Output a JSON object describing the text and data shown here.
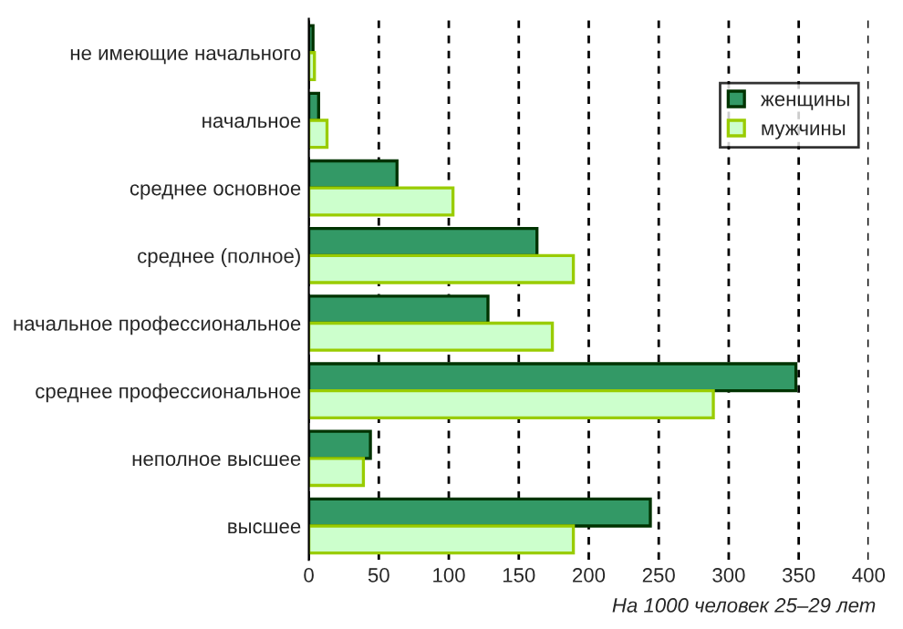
{
  "chart_data": {
    "type": "bar",
    "orientation": "horizontal",
    "categories": [
      "не имеющие начального",
      "начальное",
      "среднее основное",
      "среднее (полное)",
      "начальное профессиональное",
      "среднее профессиональное",
      "неполное высшее",
      "высшее"
    ],
    "series": [
      {
        "name": "женщины",
        "color": "#339966",
        "values": [
          3,
          7,
          63,
          163,
          128,
          348,
          44,
          244
        ]
      },
      {
        "name": "мужчины",
        "color": "#ccffcc",
        "values": [
          4,
          13,
          103,
          189,
          174,
          289,
          39,
          189
        ]
      }
    ],
    "xlim": [
      0,
      400
    ],
    "xticks": [
      0,
      50,
      100,
      150,
      200,
      250,
      300,
      350,
      400
    ],
    "grid": "x",
    "legend": "top right",
    "annotations": [
      "На 1000 человек 25–29 лет"
    ]
  }
}
